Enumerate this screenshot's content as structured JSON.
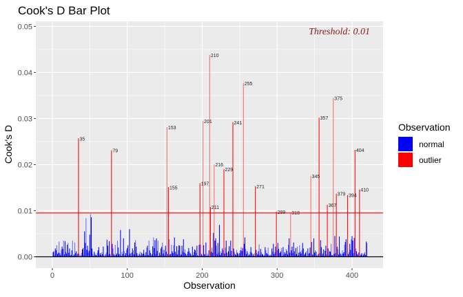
{
  "chart_data": {
    "type": "bar",
    "title": "Cook's D Bar Plot",
    "xlabel": "Observation",
    "ylabel": "Cook's D",
    "xlim": [
      -22,
      441.4
    ],
    "ylim": [
      -0.00246,
      0.0511
    ],
    "x_ticks": [
      0,
      100,
      200,
      300,
      400
    ],
    "x_tick_labels": [
      "0",
      "100",
      "200",
      "300",
      "400"
    ],
    "y_ticks": [
      0,
      0.01,
      0.02,
      0.03,
      0.04,
      0.05
    ],
    "y_tick_labels": [
      "0.00",
      "0.01",
      "0.02",
      "0.03",
      "0.04",
      "0.05"
    ],
    "grid": true,
    "threshold": 0.0095,
    "threshold_label": "Threshold: 0.01",
    "threshold_color": "#FF0000",
    "threshold_label_color": "#8B1A1A",
    "value_scale": 0.0001,
    "values": [
      10,
      12,
      3,
      18,
      14,
      25,
      6,
      9,
      33,
      8,
      4,
      15,
      22,
      17,
      35,
      5,
      34,
      11,
      7,
      26,
      30,
      9,
      18,
      3,
      4,
      14,
      35,
      2,
      5,
      31,
      8,
      12,
      4,
      7,
      257,
      6,
      1,
      3,
      8,
      16,
      19,
      4,
      55,
      30,
      84,
      15,
      24,
      9,
      13,
      48,
      93,
      86,
      18,
      6,
      2,
      11,
      7,
      4,
      3,
      9,
      14,
      21,
      5,
      8,
      4,
      10,
      6,
      22,
      3,
      1,
      5,
      9,
      37,
      24,
      5,
      34,
      6,
      2,
      231,
      28,
      18,
      6,
      3,
      26,
      4,
      7,
      35,
      20,
      6,
      5,
      58,
      2,
      11,
      6,
      40,
      12,
      3,
      8,
      15,
      19,
      25,
      4,
      60,
      7,
      2,
      9,
      18,
      14,
      5,
      31,
      36,
      22,
      8,
      4,
      2,
      6,
      11,
      3,
      9,
      5,
      7,
      15,
      6,
      3,
      10,
      20,
      24,
      4,
      35,
      14,
      8,
      2,
      5,
      23,
      42,
      19,
      36,
      6,
      40,
      13,
      35,
      2,
      9,
      4,
      18,
      22,
      31,
      7,
      15,
      3,
      24,
      11,
      281,
      6,
      151,
      38,
      5,
      6,
      26,
      12,
      8,
      25,
      42,
      11,
      6,
      23,
      5,
      14,
      25,
      24,
      4,
      5,
      24,
      12,
      38,
      9,
      16,
      7,
      3,
      6,
      11,
      19,
      12,
      8,
      5,
      2,
      22,
      4,
      10,
      16,
      14,
      8,
      24,
      3,
      2,
      26,
      160,
      26,
      6,
      3,
      295,
      25,
      6,
      5,
      31,
      2,
      7,
      3,
      14,
      438,
      108,
      11,
      20,
      9,
      52,
      201,
      35,
      40,
      24,
      6,
      30,
      9,
      69,
      4,
      12,
      8,
      18,
      14,
      190,
      7,
      20,
      35,
      9,
      2,
      12,
      23,
      6,
      35,
      13,
      3,
      292,
      18,
      11,
      6,
      4,
      15,
      9,
      6,
      2,
      8,
      14,
      21,
      13,
      19,
      377,
      28,
      42,
      17,
      6,
      12,
      8,
      3,
      5,
      11,
      21,
      9,
      3,
      6,
      2,
      7,
      153,
      15,
      8,
      5,
      12,
      27,
      4,
      17,
      10,
      6,
      5,
      2,
      3,
      21,
      14,
      8,
      6,
      20,
      4,
      2,
      5,
      3,
      18,
      11,
      28,
      6,
      10,
      22,
      98,
      14,
      30,
      17,
      8,
      9,
      12,
      19,
      2,
      21,
      5,
      10,
      7,
      17,
      13,
      5,
      26,
      40,
      9,
      96,
      14,
      22,
      8,
      31,
      12,
      5,
      19,
      6,
      22,
      3,
      9,
      25,
      11,
      7,
      14,
      30,
      18,
      4,
      6,
      9,
      12,
      2,
      18,
      6,
      8,
      20,
      175,
      32,
      5,
      4,
      40,
      9,
      14,
      11,
      3,
      2,
      6,
      302,
      8,
      36,
      21,
      3,
      7,
      16,
      2,
      13,
      24,
      5,
      113,
      18,
      4,
      12,
      11,
      28,
      4,
      3,
      345,
      6,
      45,
      8,
      137,
      22,
      17,
      5,
      44,
      9,
      6,
      3,
      14,
      7,
      10,
      26,
      32,
      38,
      2,
      134,
      6,
      10,
      28,
      15,
      38,
      45,
      35,
      8,
      41,
      232,
      18,
      12,
      6,
      4,
      9,
      146,
      3,
      5,
      8,
      2,
      4,
      7,
      10,
      4,
      33,
      30
    ],
    "outlier_labels": [
      "35",
      "79",
      "153",
      "155",
      "197",
      "201",
      "210",
      "211",
      "216",
      "229",
      "241",
      "255",
      "271",
      "299",
      "318",
      "345",
      "357",
      "367",
      "375",
      "379",
      "394",
      "404",
      "410"
    ],
    "legend": {
      "title": "Observation",
      "placement": "right",
      "items": [
        {
          "label": "normal",
          "color": "#0000FF"
        },
        {
          "label": "outlier",
          "color": "#FF0000"
        }
      ]
    }
  }
}
